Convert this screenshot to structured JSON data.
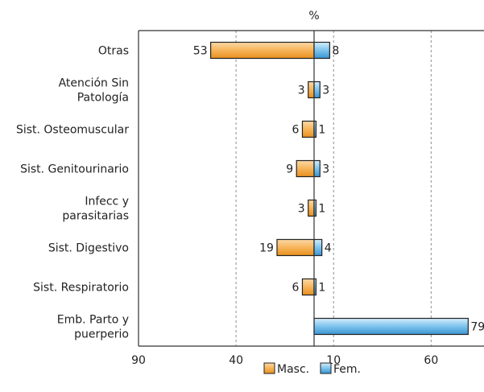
{
  "chart_data": {
    "type": "bar",
    "orientation": "horizontal-diverging",
    "unit_label": "%",
    "categories": [
      [
        "Otras"
      ],
      [
        "Atención Sin",
        "Patología"
      ],
      [
        "Sist. Osteomuscular"
      ],
      [
        "Sist. Genitourinario"
      ],
      [
        "Infecc y",
        "parasitarias"
      ],
      [
        "Sist. Digestivo"
      ],
      [
        "Sist. Respiratorio"
      ],
      [
        "Emb. Parto y",
        "puerperio"
      ]
    ],
    "series": [
      {
        "name": "Masc.",
        "direction": "left",
        "color": "#f3a33a",
        "values": [
          53,
          3,
          6,
          9,
          3,
          19,
          6,
          0
        ]
      },
      {
        "name": "Fem.",
        "direction": "right",
        "color": "#5aafe3",
        "values": [
          8,
          3,
          1,
          3,
          1,
          4,
          1,
          79
        ]
      }
    ],
    "x_ticks": [
      {
        "label": "90",
        "value": -90
      },
      {
        "label": "40",
        "value": -40
      },
      {
        "label": "10",
        "value": 10
      },
      {
        "label": "60",
        "value": 60
      }
    ],
    "xlim": [
      -90,
      86
    ],
    "grid": "vertical-dashed",
    "legend_position": "bottom"
  }
}
